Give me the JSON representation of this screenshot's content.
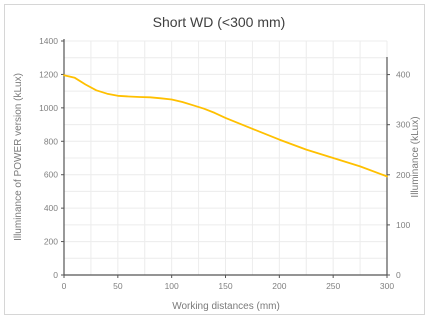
{
  "chart_data": {
    "type": "line",
    "title": "Short WD (<300 mm)",
    "xlabel": "Working distances (mm)",
    "ylabel_left": "Illuminance of POWER version (kLux)",
    "ylabel_right": "Illuminance (kLux)",
    "xlim": [
      0,
      300
    ],
    "ylim_left": [
      0,
      1400
    ],
    "ylim_right": [
      0,
      467
    ],
    "x_ticks": [
      0,
      50,
      100,
      150,
      200,
      250,
      300
    ],
    "y_ticks_left": [
      0,
      200,
      400,
      600,
      800,
      1000,
      1200,
      1400
    ],
    "y_ticks_right": [
      0,
      100,
      200,
      300,
      400
    ],
    "grid": true,
    "series": [
      {
        "color": "#FFC000",
        "axis": "left",
        "x": [
          0,
          10,
          20,
          30,
          40,
          50,
          60,
          70,
          80,
          90,
          100,
          110,
          120,
          130,
          140,
          150,
          175,
          200,
          225,
          250,
          275,
          300
        ],
        "y": [
          1195,
          1180,
          1140,
          1105,
          1085,
          1072,
          1068,
          1065,
          1063,
          1057,
          1050,
          1035,
          1015,
          995,
          970,
          940,
          875,
          810,
          750,
          700,
          650,
          590
        ]
      }
    ]
  }
}
